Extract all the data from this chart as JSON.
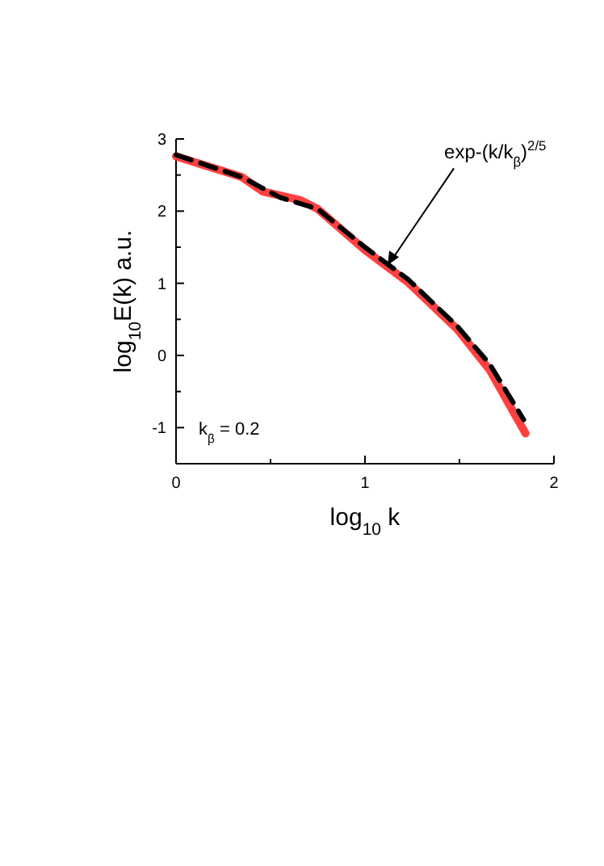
{
  "chart_data": {
    "type": "line",
    "xlabel": "log$_{10}$ k",
    "ylabel": "log$_{10}$E(k)  a.u.",
    "xlim": [
      0,
      2
    ],
    "ylim": [
      -1.5,
      3
    ],
    "xticks": [
      0,
      {
        "value": 0.5,
        "label": null
      },
      1,
      {
        "value": 1.5,
        "label": null
      },
      2
    ],
    "yticks": [
      -1,
      {
        "value": -0.5,
        "label": null
      },
      0,
      {
        "value": 0.5,
        "label": null
      },
      1,
      {
        "value": 1.5,
        "label": null
      },
      2,
      {
        "value": 2.5,
        "label": null
      },
      3
    ],
    "grid": false,
    "marker": "none",
    "series": [
      {
        "color": "#ff4040",
        "line_style": "solid",
        "x": [
          0,
          0.35,
          0.46,
          0.66,
          0.75,
          1.0,
          1.23,
          1.49,
          1.66,
          1.85
        ],
        "values": [
          2.76,
          2.47,
          2.27,
          2.15,
          2.03,
          1.46,
          1.01,
          0.36,
          -0.2,
          -1.08
        ]
      },
      {
        "color": "#000000",
        "line_style": "dashed",
        "x": [
          0,
          0.35,
          0.55,
          0.75,
          1.0,
          1.23,
          1.49,
          1.66,
          1.84
        ],
        "values": [
          2.78,
          2.47,
          2.19,
          2.03,
          1.5,
          1.05,
          0.4,
          -0.12,
          -0.89
        ]
      }
    ],
    "annotations": [
      {
        "text": "exp-(k/k$_{β}$)$^{2/5}$",
        "x": 1.12,
        "y": 1.25
      },
      "k$_{β}$ = 0.2"
    ]
  }
}
